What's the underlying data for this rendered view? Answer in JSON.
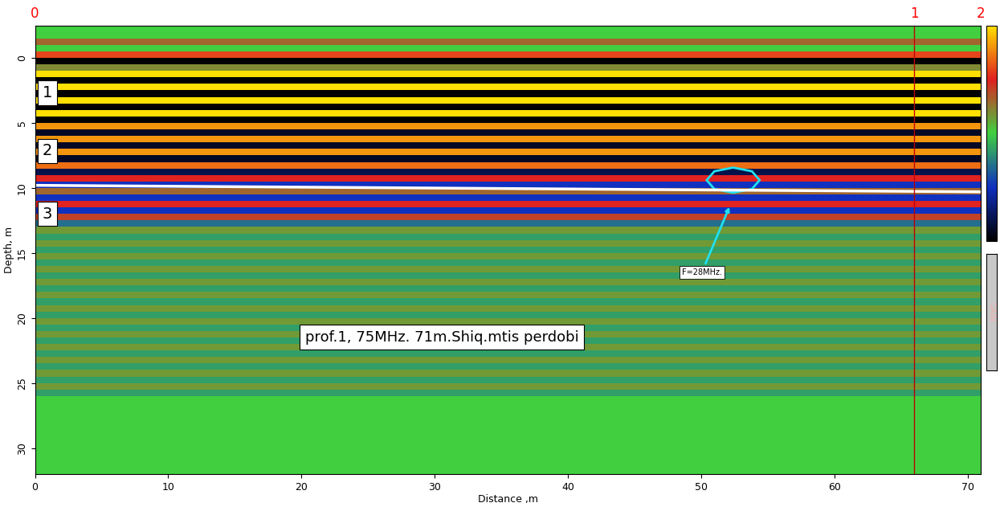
{
  "chart_data": {
    "type": "radargram",
    "annotation": "prof.1, 75MHz. 71m.Shiq.mtis perdobi",
    "callout": "F=28MHz.",
    "layer_labels": [
      "1",
      "2",
      "3"
    ],
    "side_label": "GAIN",
    "x_label": "Distance ,m",
    "y_label": "Depth, m",
    "xlim": [
      0,
      71
    ],
    "xticks": [
      0,
      10,
      20,
      30,
      40,
      50,
      60,
      70
    ],
    "ylim": [
      32,
      -2.5
    ],
    "yticks": [
      0,
      5,
      10,
      15,
      20,
      25,
      30
    ],
    "markers": [
      {
        "x": 0,
        "label": "0"
      },
      {
        "x": 66,
        "label": "1",
        "line": true
      },
      {
        "x": 71,
        "label": "2"
      }
    ],
    "interface": {
      "x": [
        0,
        71
      ],
      "depth": [
        9.8,
        10.3
      ],
      "color": "#ffffff"
    },
    "depth_edges": [
      -2,
      -1.5,
      -1,
      -0.5,
      0,
      0.5,
      1,
      1.5,
      2,
      2.5,
      3,
      3.5,
      4,
      4.5,
      5,
      5.5,
      6,
      6.5,
      7,
      7.5,
      8,
      8.5,
      9,
      9.5,
      10,
      10.5,
      11,
      11.5,
      12,
      12.5,
      13,
      13.5,
      14,
      14.5,
      15,
      15.5,
      16,
      16.5,
      17,
      17.5,
      18,
      18.5,
      19,
      19.5,
      20,
      20.5,
      21,
      21.5,
      22,
      22.5,
      23,
      23.5,
      24,
      24.5,
      25,
      25.5,
      26,
      26.5,
      27,
      27.5,
      28,
      28.5,
      29,
      29.5,
      30,
      30.5,
      31,
      31.5,
      32
    ],
    "amplitudes": [
      0,
      0.3,
      0,
      0.6,
      -1,
      0.2,
      1,
      -1,
      1,
      -1,
      1,
      -1,
      1,
      -1,
      0.8,
      -0.9,
      0.8,
      -0.9,
      0.8,
      -0.9,
      0.7,
      -0.8,
      0.5,
      -0.5,
      0.3,
      -0.5,
      0.5,
      -0.5,
      0.4,
      -0.3,
      0.15,
      -0.15,
      0.15,
      -0.15,
      0.15,
      -0.15,
      0.15,
      -0.15,
      0.15,
      -0.15,
      0.15,
      -0.15,
      0.15,
      -0.15,
      0.15,
      -0.15,
      0.15,
      -0.15,
      0.15,
      -0.15,
      0.15,
      -0.15,
      0.15,
      -0.15,
      0.15,
      -0.15,
      0,
      0,
      0,
      0,
      0,
      0,
      0,
      0,
      0,
      0,
      0,
      0
    ],
    "colorbar_lim": [
      -1,
      1
    ]
  }
}
